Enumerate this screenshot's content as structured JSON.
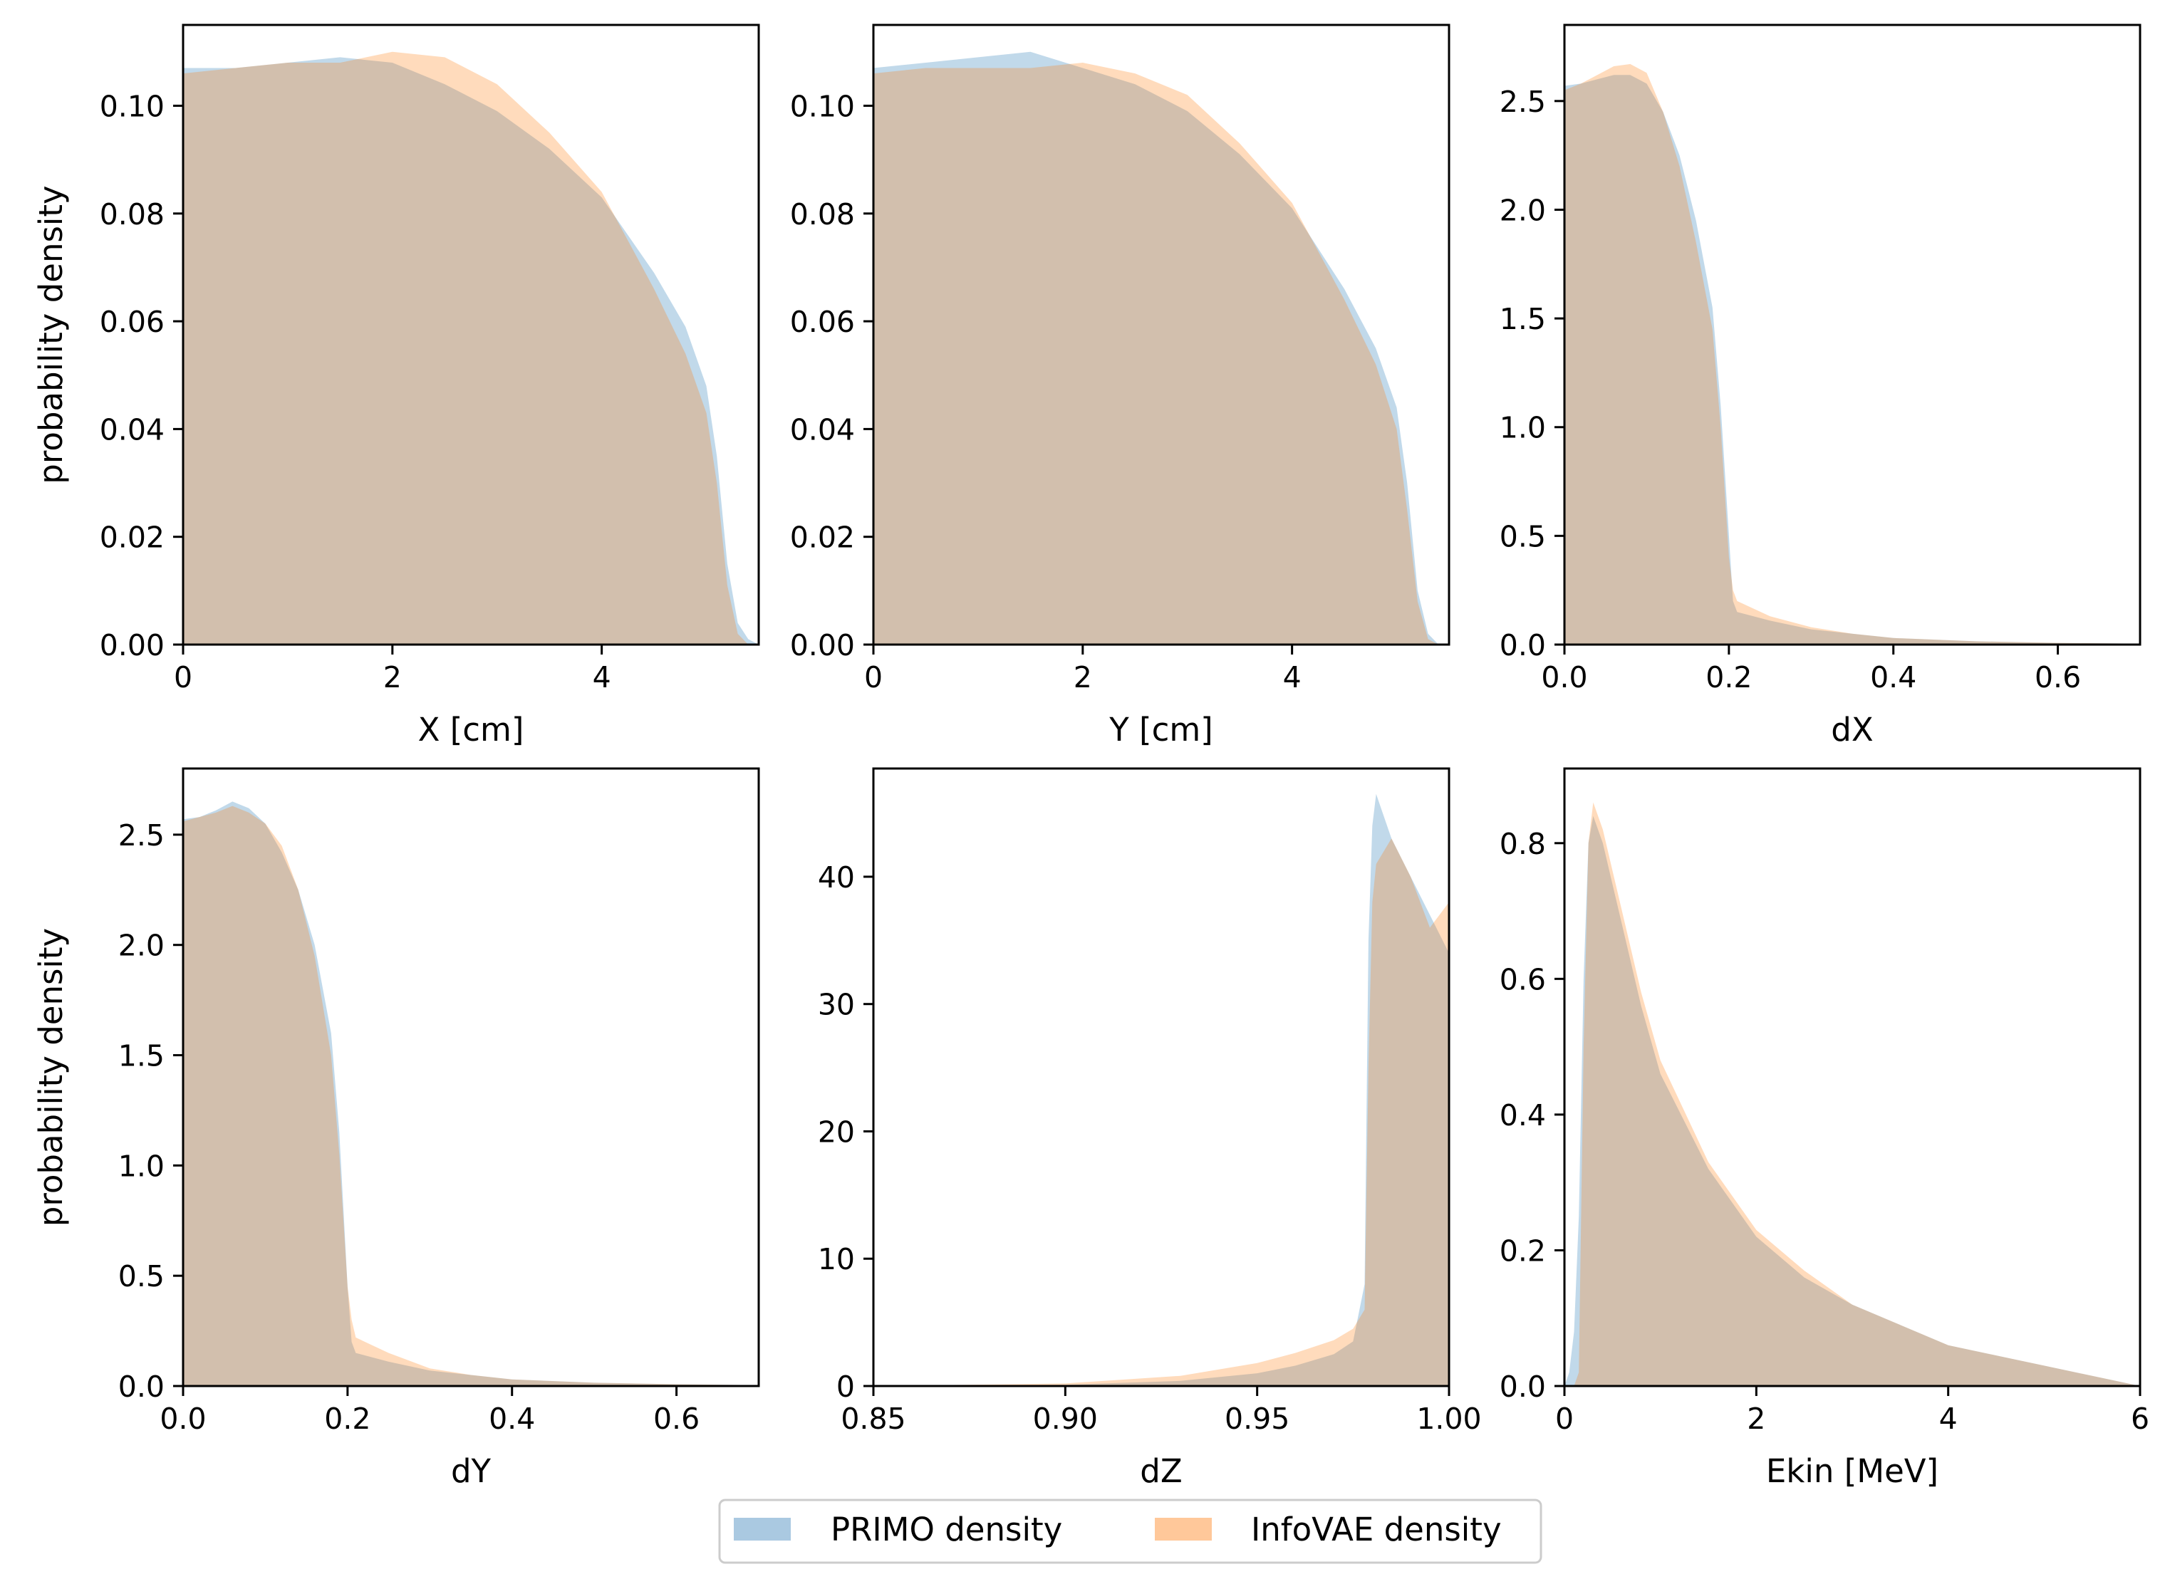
{
  "chart_data": [
    {
      "type": "area",
      "xlabel": "X [cm]",
      "ylabel": "probability density",
      "xlim": [
        0,
        5.5
      ],
      "ylim": [
        0,
        0.115
      ],
      "xticks": [
        0,
        2,
        4
      ],
      "xtick_labels": [
        "0",
        "2",
        "4"
      ],
      "yticks": [
        0,
        0.02,
        0.04,
        0.06,
        0.08,
        0.1
      ],
      "ytick_labels": [
        "0.00",
        "0.02",
        "0.04",
        "0.06",
        "0.08",
        "0.10"
      ],
      "series": [
        {
          "name": "PRIMO density",
          "x": [
            0,
            0.5,
            1.0,
            1.5,
            2.0,
            2.5,
            3.0,
            3.5,
            4.0,
            4.5,
            4.8,
            5.0,
            5.1,
            5.2,
            5.3,
            5.4,
            5.5
          ],
          "values": [
            0.107,
            0.107,
            0.108,
            0.109,
            0.108,
            0.104,
            0.099,
            0.092,
            0.083,
            0.069,
            0.059,
            0.048,
            0.035,
            0.015,
            0.004,
            0.001,
            0.0
          ]
        },
        {
          "name": "InfoVAE density",
          "x": [
            0,
            0.5,
            1.0,
            1.5,
            2.0,
            2.5,
            3.0,
            3.5,
            4.0,
            4.5,
            4.8,
            5.0,
            5.1,
            5.2,
            5.3,
            5.4,
            5.5
          ],
          "values": [
            0.106,
            0.107,
            0.108,
            0.108,
            0.11,
            0.109,
            0.104,
            0.095,
            0.084,
            0.066,
            0.054,
            0.043,
            0.03,
            0.011,
            0.002,
            0.0,
            0.0
          ]
        }
      ]
    },
    {
      "type": "area",
      "xlabel": "Y [cm]",
      "ylabel": "",
      "xlim": [
        0,
        5.5
      ],
      "ylim": [
        0,
        0.115
      ],
      "xticks": [
        0,
        2,
        4
      ],
      "xtick_labels": [
        "0",
        "2",
        "4"
      ],
      "yticks": [
        0,
        0.02,
        0.04,
        0.06,
        0.08,
        0.1
      ],
      "ytick_labels": [
        "0.00",
        "0.02",
        "0.04",
        "0.06",
        "0.08",
        "0.10"
      ],
      "series": [
        {
          "name": "PRIMO density",
          "x": [
            0,
            0.5,
            1.0,
            1.5,
            2.0,
            2.5,
            3.0,
            3.5,
            4.0,
            4.5,
            4.8,
            5.0,
            5.1,
            5.2,
            5.3,
            5.4,
            5.5
          ],
          "values": [
            0.107,
            0.108,
            0.109,
            0.11,
            0.107,
            0.104,
            0.099,
            0.091,
            0.081,
            0.066,
            0.055,
            0.044,
            0.03,
            0.01,
            0.002,
            0.0,
            0.0
          ]
        },
        {
          "name": "InfoVAE density",
          "x": [
            0,
            0.5,
            1.0,
            1.5,
            2.0,
            2.5,
            3.0,
            3.5,
            4.0,
            4.5,
            4.8,
            5.0,
            5.1,
            5.2,
            5.3,
            5.4,
            5.5
          ],
          "values": [
            0.106,
            0.107,
            0.107,
            0.107,
            0.108,
            0.106,
            0.102,
            0.093,
            0.082,
            0.064,
            0.052,
            0.04,
            0.025,
            0.008,
            0.001,
            0.0,
            0.0
          ]
        }
      ]
    },
    {
      "type": "area",
      "xlabel": "dX",
      "ylabel": "",
      "xlim": [
        0,
        0.7
      ],
      "ylim": [
        0,
        2.85
      ],
      "xticks": [
        0,
        0.2,
        0.4,
        0.6
      ],
      "xtick_labels": [
        "0.0",
        "0.2",
        "0.4",
        "0.6"
      ],
      "yticks": [
        0,
        0.5,
        1.0,
        1.5,
        2.0,
        2.5
      ],
      "ytick_labels": [
        "0.0",
        "0.5",
        "1.0",
        "1.5",
        "2.0",
        "2.5"
      ],
      "series": [
        {
          "name": "PRIMO density",
          "x": [
            0,
            0.02,
            0.04,
            0.06,
            0.08,
            0.1,
            0.12,
            0.14,
            0.16,
            0.18,
            0.19,
            0.2,
            0.205,
            0.21,
            0.25,
            0.3,
            0.35,
            0.4,
            0.5,
            0.6,
            0.7
          ],
          "values": [
            2.57,
            2.58,
            2.6,
            2.62,
            2.62,
            2.58,
            2.45,
            2.25,
            1.95,
            1.55,
            1.1,
            0.5,
            0.2,
            0.15,
            0.11,
            0.07,
            0.05,
            0.03,
            0.015,
            0.008,
            0.004
          ]
        },
        {
          "name": "InfoVAE density",
          "x": [
            0,
            0.02,
            0.04,
            0.06,
            0.08,
            0.1,
            0.12,
            0.14,
            0.16,
            0.18,
            0.19,
            0.2,
            0.205,
            0.21,
            0.25,
            0.3,
            0.35,
            0.4,
            0.5,
            0.6,
            0.7
          ],
          "values": [
            2.55,
            2.58,
            2.62,
            2.66,
            2.67,
            2.63,
            2.45,
            2.2,
            1.85,
            1.45,
            1.0,
            0.4,
            0.25,
            0.2,
            0.13,
            0.08,
            0.05,
            0.03,
            0.015,
            0.008,
            0.004
          ]
        }
      ]
    },
    {
      "type": "area",
      "xlabel": "dY",
      "ylabel": "probability density",
      "xlim": [
        0,
        0.7
      ],
      "ylim": [
        0,
        2.8
      ],
      "xticks": [
        0,
        0.2,
        0.4,
        0.6
      ],
      "xtick_labels": [
        "0.0",
        "0.2",
        "0.4",
        "0.6"
      ],
      "yticks": [
        0,
        0.5,
        1.0,
        1.5,
        2.0,
        2.5
      ],
      "ytick_labels": [
        "0.0",
        "0.5",
        "1.0",
        "1.5",
        "2.0",
        "2.5"
      ],
      "series": [
        {
          "name": "PRIMO density",
          "x": [
            0,
            0.02,
            0.04,
            0.06,
            0.08,
            0.1,
            0.12,
            0.14,
            0.16,
            0.18,
            0.19,
            0.2,
            0.205,
            0.21,
            0.25,
            0.3,
            0.35,
            0.4,
            0.5,
            0.6,
            0.7
          ],
          "values": [
            2.57,
            2.58,
            2.61,
            2.65,
            2.62,
            2.55,
            2.42,
            2.25,
            2.0,
            1.6,
            1.15,
            0.45,
            0.2,
            0.15,
            0.11,
            0.07,
            0.05,
            0.03,
            0.015,
            0.008,
            0.004
          ]
        },
        {
          "name": "InfoVAE density",
          "x": [
            0,
            0.02,
            0.04,
            0.06,
            0.08,
            0.1,
            0.12,
            0.14,
            0.16,
            0.18,
            0.19,
            0.2,
            0.205,
            0.21,
            0.25,
            0.3,
            0.35,
            0.4,
            0.5,
            0.6,
            0.7
          ],
          "values": [
            2.56,
            2.58,
            2.6,
            2.63,
            2.6,
            2.55,
            2.45,
            2.25,
            1.95,
            1.5,
            1.05,
            0.45,
            0.3,
            0.22,
            0.15,
            0.08,
            0.05,
            0.03,
            0.015,
            0.008,
            0.004
          ]
        }
      ]
    },
    {
      "type": "area",
      "xlabel": "dZ",
      "ylabel": "",
      "xlim": [
        0.85,
        1.0
      ],
      "ylim": [
        0,
        48.5
      ],
      "xticks": [
        0.85,
        0.9,
        0.95,
        1.0
      ],
      "xtick_labels": [
        "0.85",
        "0.90",
        "0.95",
        "1.00"
      ],
      "yticks": [
        0,
        10,
        20,
        30,
        40
      ],
      "ytick_labels": [
        "0",
        "10",
        "20",
        "30",
        "40"
      ],
      "series": [
        {
          "name": "PRIMO density",
          "x": [
            0.85,
            0.9,
            0.93,
            0.95,
            0.96,
            0.97,
            0.975,
            0.978,
            0.979,
            0.98,
            0.981,
            0.985,
            0.99,
            0.995,
            1.0
          ],
          "values": [
            0.0,
            0.1,
            0.4,
            1.0,
            1.6,
            2.5,
            3.5,
            8.0,
            35.0,
            44.0,
            46.5,
            43.0,
            40.0,
            37.0,
            34.0
          ]
        },
        {
          "name": "InfoVAE density",
          "x": [
            0.85,
            0.9,
            0.93,
            0.95,
            0.96,
            0.97,
            0.975,
            0.978,
            0.979,
            0.98,
            0.981,
            0.985,
            0.99,
            0.995,
            1.0
          ],
          "values": [
            0.0,
            0.2,
            0.8,
            1.8,
            2.6,
            3.6,
            4.5,
            6.0,
            25.0,
            38.0,
            41.0,
            43.0,
            40.0,
            36.0,
            38.0
          ]
        }
      ]
    },
    {
      "type": "area",
      "xlabel": "Ekin [MeV]",
      "ylabel": "",
      "xlim": [
        0,
        6
      ],
      "ylim": [
        0,
        0.91
      ],
      "xticks": [
        0,
        2,
        4,
        6
      ],
      "xtick_labels": [
        "0",
        "2",
        "4",
        "6"
      ],
      "yticks": [
        0,
        0.2,
        0.4,
        0.6,
        0.8
      ],
      "ytick_labels": [
        "0.0",
        "0.2",
        "0.4",
        "0.6",
        "0.8"
      ],
      "series": [
        {
          "name": "PRIMO density",
          "x": [
            0,
            0.05,
            0.1,
            0.15,
            0.2,
            0.25,
            0.3,
            0.4,
            0.5,
            0.6,
            0.8,
            1.0,
            1.5,
            2.0,
            2.5,
            3.0,
            4.0,
            5.0,
            6.0
          ],
          "values": [
            0.0,
            0.02,
            0.08,
            0.25,
            0.6,
            0.8,
            0.84,
            0.8,
            0.74,
            0.68,
            0.56,
            0.46,
            0.32,
            0.22,
            0.16,
            0.12,
            0.06,
            0.03,
            0.0
          ]
        },
        {
          "name": "InfoVAE density",
          "x": [
            0,
            0.05,
            0.1,
            0.15,
            0.2,
            0.25,
            0.3,
            0.4,
            0.5,
            0.6,
            0.8,
            1.0,
            1.5,
            2.0,
            2.5,
            3.0,
            4.0,
            5.0,
            6.0
          ],
          "values": [
            0.0,
            0.0,
            0.0,
            0.02,
            0.5,
            0.8,
            0.86,
            0.82,
            0.76,
            0.7,
            0.58,
            0.48,
            0.33,
            0.23,
            0.17,
            0.12,
            0.06,
            0.03,
            0.0
          ]
        }
      ]
    }
  ],
  "legend": {
    "items": [
      {
        "label": "PRIMO density",
        "color": "#aac9e1"
      },
      {
        "label": "InfoVAE density",
        "color": "#ffc89a"
      }
    ]
  },
  "colors": {
    "primo": "#1f77b4",
    "infovae": "#ff7f0e",
    "series_opacity": 0.28
  }
}
